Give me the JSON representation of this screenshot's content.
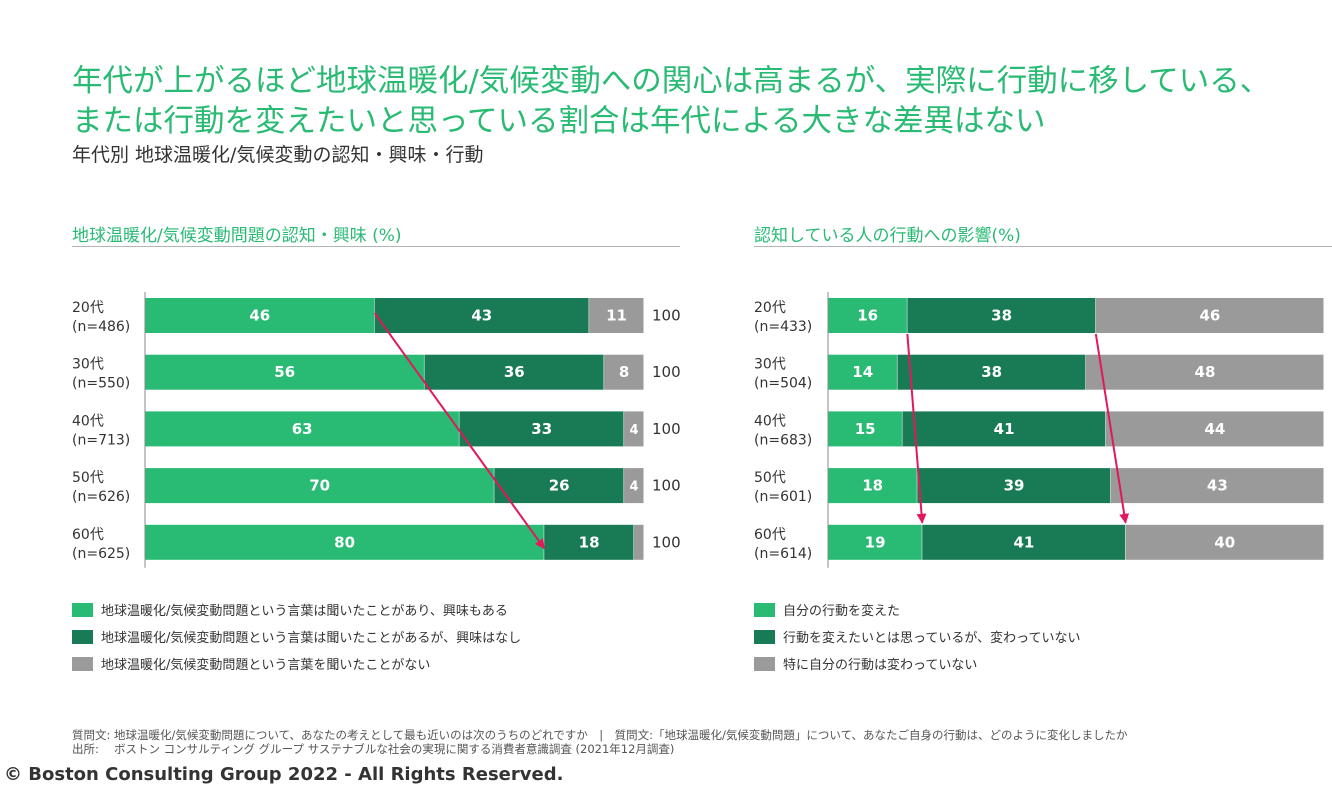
{
  "header": {
    "title_line1": "年代が上がるほど地球温暖化/気候変動への関心は高まるが、実際に行動に移している、",
    "title_line2": "または行動を変えたいと思っている割合は年代による大きな差異はない",
    "subtitle": "年代別 地球温暖化/気候変動の認知・興味・行動"
  },
  "colors": {
    "light_green": "#29ba74",
    "dark_green": "#197a56",
    "gray": "#9a9a9a",
    "arrow": "#e0195a"
  },
  "chart_data": [
    {
      "type": "bar",
      "orientation": "horizontal",
      "stacked": true,
      "title": "地球温暖化/気候変動問題の認知・興味 (%)",
      "categories": [
        "20代",
        "30代",
        "40代",
        "50代",
        "60代"
      ],
      "sample_sizes": [
        "(n=486)",
        "(n=550)",
        "(n=713)",
        "(n=626)",
        "(n=625)"
      ],
      "series": [
        {
          "name": "地球温暖化/気候変動問題という言葉は聞いたことがあり、興味もある",
          "values": [
            46,
            56,
            63,
            70,
            80
          ]
        },
        {
          "name": "地球温暖化/気候変動問題という言葉は聞いたことがあるが、興味はなし",
          "values": [
            43,
            36,
            33,
            26,
            18
          ]
        },
        {
          "name": "地球温暖化/気候変動問題という言葉を聞いたことがない",
          "values": [
            11,
            8,
            4,
            4,
            2
          ]
        }
      ],
      "totals": [
        100,
        100,
        100,
        100,
        100
      ],
      "xlim": [
        0,
        100
      ],
      "annotations": [
        "arrow from 20代 segment boundary (46) to 60代 segment boundary (80)"
      ]
    },
    {
      "type": "bar",
      "orientation": "horizontal",
      "stacked": true,
      "title": "認知している人の行動への影響(%)",
      "categories": [
        "20代",
        "30代",
        "40代",
        "50代",
        "60代"
      ],
      "sample_sizes": [
        "(n=433)",
        "(n=504)",
        "(n=683)",
        "(n=601)",
        "(n=614)"
      ],
      "series": [
        {
          "name": "自分の行動を変えた",
          "values": [
            16,
            14,
            15,
            18,
            19
          ]
        },
        {
          "name": "行動を変えたいとは思っているが、変わっていない",
          "values": [
            38,
            38,
            41,
            39,
            41
          ]
        },
        {
          "name": "特に自分の行動は変わっていない",
          "values": [
            46,
            48,
            44,
            43,
            40
          ]
        }
      ],
      "xlim": [
        0,
        100
      ],
      "annotations": [
        "arrow from 20代 boundary (16) to 60代 boundary (19)",
        "arrow from 20代 boundary (54) to 60代 boundary (60)"
      ]
    }
  ],
  "footnote": {
    "line1": "質問文: 地球温暖化/気候変動問題について、あなたの考えとして最も近いのは次のうちのどれですか　|　質問文:「地球温暖化/気候変動問題」について、あなたご自身の行動は、どのように変化しましたか",
    "line2": "出所:　 ボストン コンサルティング グループ サステナブルな社会の実現に関する消費者意識調査 (2021年12月調査)"
  },
  "copyright": "© Boston Consulting Group 2022 - All Rights Reserved."
}
